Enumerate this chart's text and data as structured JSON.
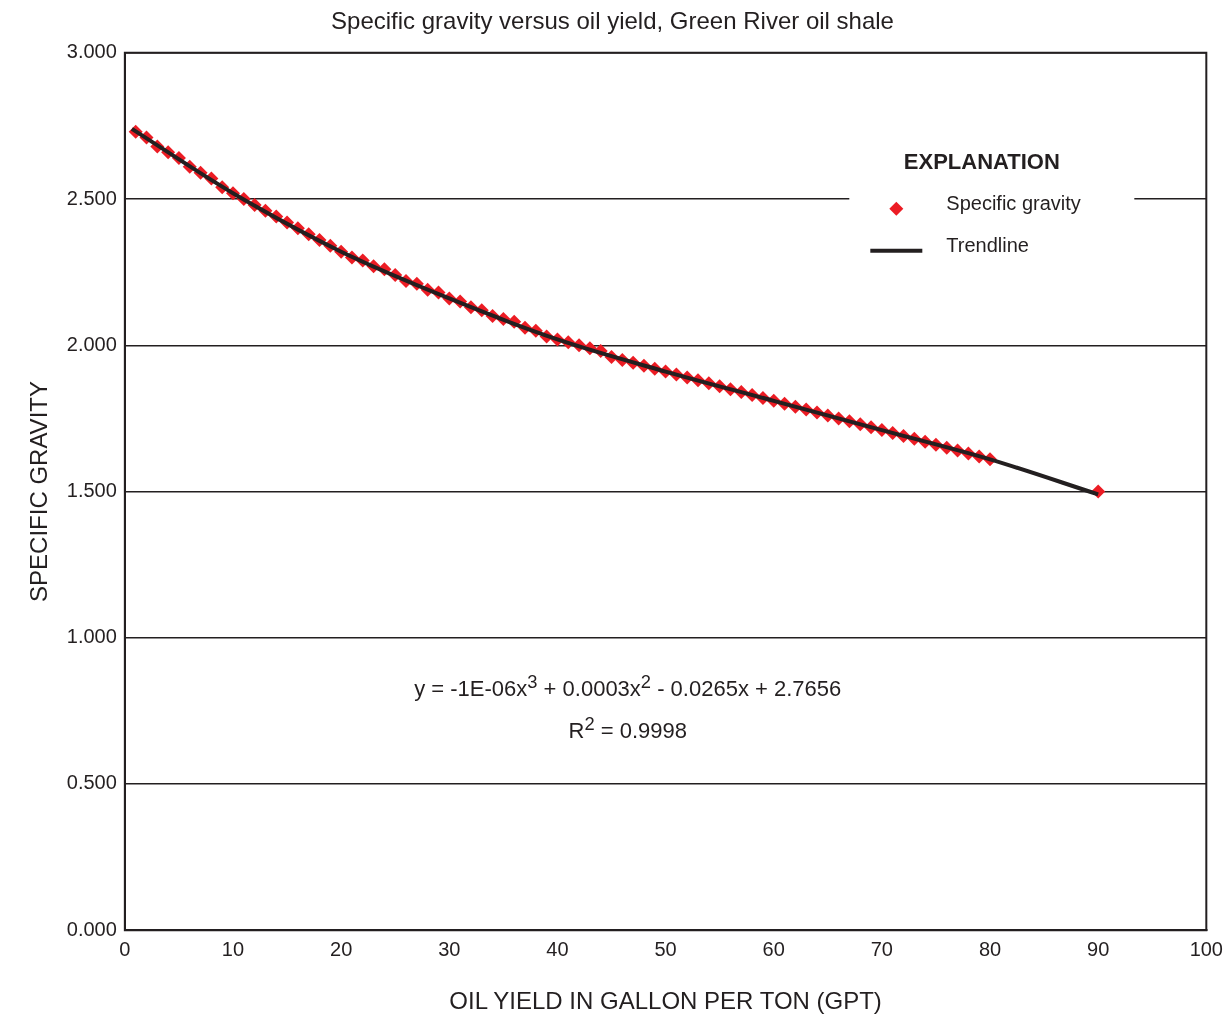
{
  "chart_data": {
    "type": "scatter",
    "title": "Specific gravity versus oil yield, Green River oil shale",
    "xlabel": "OIL YIELD IN GALLON PER TON (GPT)",
    "ylabel": "SPECIFIC GRAVITY",
    "legend_title": "EXPLANATION",
    "legend": "top right",
    "grid": "y",
    "xlim": [
      0,
      100
    ],
    "xticks": [
      0,
      10,
      20,
      30,
      40,
      50,
      60,
      70,
      80,
      90,
      100
    ],
    "ylim": [
      0,
      3
    ],
    "yticks": [
      {
        "value": 0,
        "label": "0.000"
      },
      {
        "value": 0.5,
        "label": "0.500"
      },
      {
        "value": 1,
        "label": "1.000"
      },
      {
        "value": 1.5,
        "label": "1.500"
      },
      {
        "value": 2,
        "label": "2.000"
      },
      {
        "value": 2.5,
        "label": "2.500"
      },
      {
        "value": 3,
        "label": "3.000"
      }
    ],
    "series": [
      {
        "name": "Specific gravity",
        "type": "scatter",
        "marker": "diamond",
        "color": "#ec1c24",
        "x": [
          1,
          2,
          3,
          4,
          5,
          6,
          7,
          8,
          9,
          10,
          11,
          12,
          13,
          14,
          15,
          16,
          17,
          18,
          19,
          20,
          21,
          22,
          23,
          24,
          25,
          26,
          27,
          28,
          29,
          30,
          31,
          32,
          33,
          34,
          35,
          36,
          37,
          38,
          39,
          40,
          41,
          42,
          43,
          44,
          45,
          46,
          47,
          48,
          49,
          50,
          51,
          52,
          53,
          54,
          55,
          56,
          57,
          58,
          59,
          60,
          61,
          62,
          63,
          64,
          65,
          66,
          67,
          68,
          69,
          70,
          71,
          72,
          73,
          74,
          75,
          76,
          77,
          78,
          79,
          80,
          90
        ],
        "values": [
          2.73,
          2.71,
          2.68,
          2.66,
          2.64,
          2.61,
          2.59,
          2.57,
          2.54,
          2.52,
          2.5,
          2.48,
          2.46,
          2.44,
          2.42,
          2.4,
          2.38,
          2.36,
          2.34,
          2.32,
          2.3,
          2.29,
          2.27,
          2.26,
          2.24,
          2.22,
          2.21,
          2.19,
          2.18,
          2.16,
          2.15,
          2.13,
          2.12,
          2.1,
          2.09,
          2.08,
          2.06,
          2.05,
          2.03,
          2.02,
          2.01,
          2.0,
          1.99,
          1.98,
          1.96,
          1.95,
          1.94,
          1.93,
          1.92,
          1.91,
          1.9,
          1.89,
          1.88,
          1.87,
          1.86,
          1.85,
          1.84,
          1.83,
          1.82,
          1.81,
          1.8,
          1.79,
          1.78,
          1.77,
          1.76,
          1.75,
          1.74,
          1.73,
          1.72,
          1.71,
          1.7,
          1.69,
          1.68,
          1.67,
          1.66,
          1.65,
          1.64,
          1.63,
          1.62,
          1.61,
          1.5
        ]
      },
      {
        "name": "Trendline",
        "type": "line",
        "marker": "none",
        "line_style": "solid",
        "color": "#231f20",
        "x": [
          0.65,
          10,
          20,
          30,
          40,
          50,
          60,
          70,
          80,
          90
        ],
        "values": [
          2.74,
          2.52,
          2.32,
          2.16,
          2.02,
          1.91,
          1.81,
          1.71,
          1.61,
          1.49
        ]
      }
    ],
    "annotations": [
      "y = -1E-06x$^{3}$ + 0.0003x$^{2}$ - 0.0265x + 2.7656",
      "R$^{2}$ = 0.9998"
    ]
  }
}
